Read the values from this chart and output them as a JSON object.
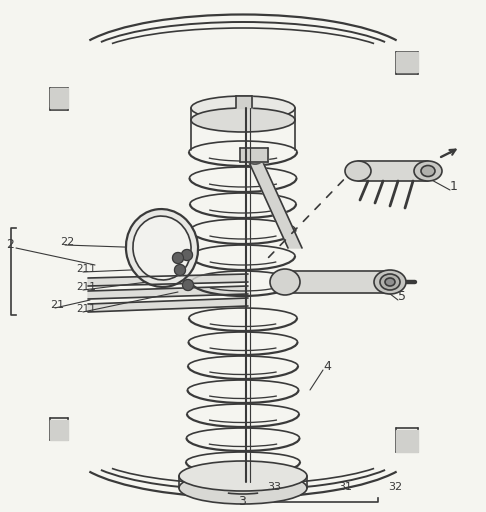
{
  "bg_color": "#f5f5f0",
  "line_color": "#3a3a3a",
  "lw": 1.2,
  "figsize": [
    4.86,
    5.12
  ],
  "dpi": 100,
  "label_fs": 9,
  "label_fs_small": 8,
  "label_fs_xsmall": 7.5
}
